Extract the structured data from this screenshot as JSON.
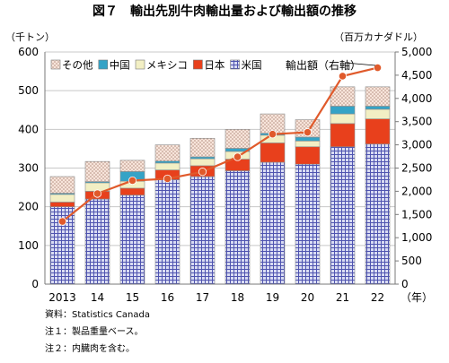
{
  "title": "図７　輸出先別牛肉輸出量および輸出額の推移",
  "left_unit": "（千トン）",
  "right_unit": "（百万カナダドル）",
  "x_unit_label": "（年）",
  "annotation": "輸出額（右軸）",
  "notes": [
    "資料：Statistics Canada",
    "注１：製品重量ベース。",
    "注２：内臓肉を含む。"
  ],
  "colors": {
    "usa": "#5b5fb8",
    "japan": "#e8401c",
    "mexico": "#f2efc4",
    "china": "#35a3c6",
    "other": "#f4ddd2",
    "line": "#e05a2b"
  },
  "chart_data": {
    "type": "bar",
    "stacked": true,
    "categories": [
      "2013",
      "14",
      "15",
      "16",
      "17",
      "18",
      "19",
      "20",
      "21",
      "22"
    ],
    "series": [
      {
        "name": "米国",
        "key": "usa",
        "pattern": "grid",
        "values": [
          200,
          220,
          230,
          270,
          278,
          293,
          315,
          310,
          355,
          362
        ]
      },
      {
        "name": "日本",
        "key": "japan",
        "values": [
          12,
          20,
          18,
          25,
          28,
          30,
          50,
          45,
          60,
          65
        ]
      },
      {
        "name": "メキシコ",
        "key": "mexico",
        "values": [
          20,
          22,
          18,
          18,
          18,
          20,
          20,
          15,
          25,
          25
        ]
      },
      {
        "name": "中国",
        "key": "china",
        "values": [
          3,
          3,
          25,
          5,
          5,
          8,
          5,
          10,
          20,
          8
        ]
      },
      {
        "name": "その他",
        "key": "other",
        "pattern": "dots",
        "values": [
          43,
          52,
          29,
          42,
          48,
          49,
          50,
          45,
          50,
          50
        ]
      }
    ],
    "line": {
      "name": "輸出額（右軸）",
      "axis": "right",
      "values": [
        1350,
        1950,
        2230,
        2270,
        2420,
        2740,
        3230,
        3270,
        4480,
        4660
      ]
    },
    "legend": {
      "order": [
        "other",
        "china",
        "mexico",
        "japan",
        "usa"
      ],
      "position": "top-left"
    },
    "y_left": {
      "min": 0,
      "max": 600,
      "ticks": [
        "0",
        "100",
        "200",
        "300",
        "400",
        "500",
        "600"
      ]
    },
    "y_right": {
      "min": 0,
      "max": 5000,
      "ticks": [
        "0",
        "500",
        "1,000",
        "1,500",
        "2,000",
        "2,500",
        "3,000",
        "3,500",
        "4,000",
        "4,500",
        "5,000"
      ]
    },
    "grid": true
  }
}
